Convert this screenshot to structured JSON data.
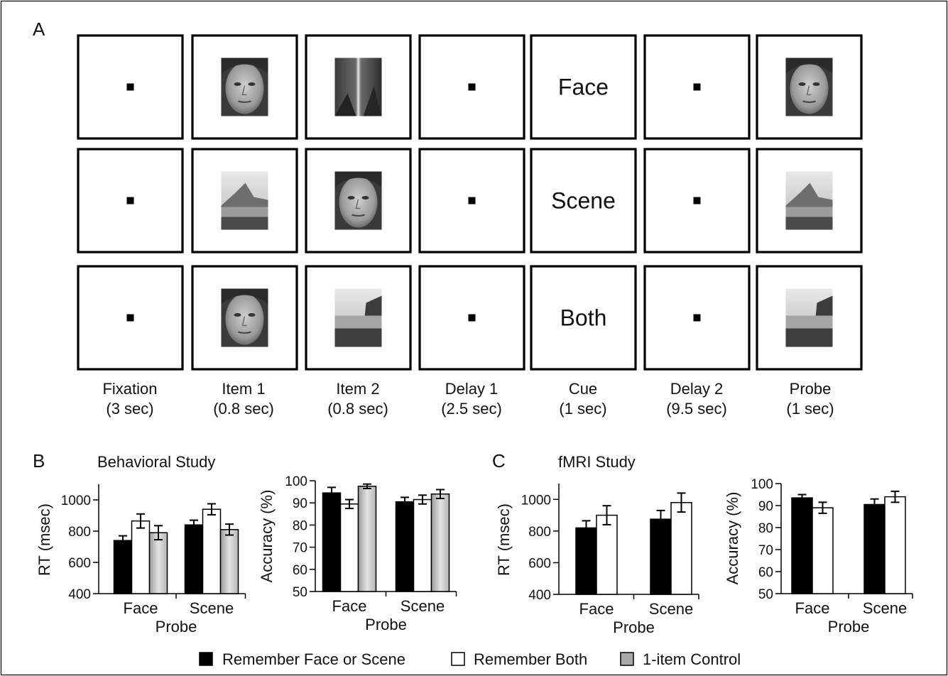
{
  "panel_labels": {
    "a": "A",
    "b": "B",
    "c": "C"
  },
  "panel_a": {
    "rows": [
      {
        "cells": [
          "fixation",
          "face",
          "scene",
          "fixation",
          "Face",
          "fixation",
          "face"
        ]
      },
      {
        "cells": [
          "fixation",
          "scene",
          "face",
          "fixation",
          "Scene",
          "fixation",
          "scene"
        ]
      },
      {
        "cells": [
          "fixation",
          "face",
          "scene",
          "fixation",
          "Both",
          "fixation",
          "scene"
        ]
      }
    ],
    "columns": [
      {
        "name": "Fixation",
        "duration": "(3 sec)"
      },
      {
        "name": "Item 1",
        "duration": "(0.8 sec)"
      },
      {
        "name": "Item 2",
        "duration": "(0.8 sec)"
      },
      {
        "name": "Delay 1",
        "duration": "(2.5 sec)"
      },
      {
        "name": "Cue",
        "duration": "(1 sec)"
      },
      {
        "name": "Delay 2",
        "duration": "(9.5 sec)"
      },
      {
        "name": "Probe",
        "duration": "(1 sec)"
      }
    ]
  },
  "titles": {
    "behavioral": "Behavioral Study",
    "fmri": "fMRI Study"
  },
  "colors": {
    "remember_one": "#000000",
    "remember_both": "#ffffff",
    "control": "#c8c8c8"
  },
  "chart_data": [
    {
      "type": "bar",
      "panel": "B",
      "title": "Behavioral Study",
      "xlabel": "Probe",
      "ylabel": "RT (msec)",
      "categories": [
        "Face",
        "Scene"
      ],
      "ylim": [
        400,
        1100
      ],
      "yticks": [
        400,
        600,
        800,
        1000
      ],
      "series": [
        {
          "name": "Remember Face or Scene",
          "values": [
            740,
            840
          ],
          "errors": [
            30,
            30
          ]
        },
        {
          "name": "Remember Both",
          "values": [
            865,
            940
          ],
          "errors": [
            45,
            35
          ]
        },
        {
          "name": "1-item Control",
          "values": [
            790,
            810
          ],
          "errors": [
            45,
            35
          ]
        }
      ]
    },
    {
      "type": "bar",
      "panel": "B",
      "xlabel": "Probe",
      "ylabel": "Accuracy (%)",
      "categories": [
        "Face",
        "Scene"
      ],
      "ylim": [
        50,
        100
      ],
      "yticks": [
        50,
        60,
        70,
        80,
        90,
        100
      ],
      "series": [
        {
          "name": "Remember Face or Scene",
          "values": [
            94.5,
            90.5
          ],
          "errors": [
            2.5,
            2
          ]
        },
        {
          "name": "Remember Both",
          "values": [
            89.5,
            91.5
          ],
          "errors": [
            2,
            2
          ]
        },
        {
          "name": "1-item Control",
          "values": [
            97.5,
            94
          ],
          "errors": [
            1,
            2
          ]
        }
      ]
    },
    {
      "type": "bar",
      "panel": "C",
      "title": "fMRI Study",
      "xlabel": "Probe",
      "ylabel": "RT (msec)",
      "categories": [
        "Face",
        "Scene"
      ],
      "ylim": [
        400,
        1100
      ],
      "yticks": [
        400,
        600,
        800,
        1000
      ],
      "series": [
        {
          "name": "Remember Face or Scene",
          "values": [
            820,
            875
          ],
          "errors": [
            45,
            55
          ]
        },
        {
          "name": "Remember Both",
          "values": [
            900,
            980
          ],
          "errors": [
            60,
            60
          ]
        }
      ]
    },
    {
      "type": "bar",
      "panel": "C",
      "xlabel": "Probe",
      "ylabel": "Accuracy (%)",
      "categories": [
        "Face",
        "Scene"
      ],
      "ylim": [
        50,
        100
      ],
      "yticks": [
        50,
        60,
        70,
        80,
        90,
        100
      ],
      "series": [
        {
          "name": "Remember Face or Scene",
          "values": [
            93.5,
            90.5
          ],
          "errors": [
            1.5,
            2.5
          ]
        },
        {
          "name": "Remember Both",
          "values": [
            89,
            94
          ],
          "errors": [
            2.5,
            2.5
          ]
        }
      ]
    }
  ],
  "legend": [
    {
      "label": "Remember Face or Scene",
      "color": "#000000"
    },
    {
      "label": "Remember Both",
      "color": "#ffffff"
    },
    {
      "label": "1-item Control",
      "color": "#c8c8c8"
    }
  ]
}
